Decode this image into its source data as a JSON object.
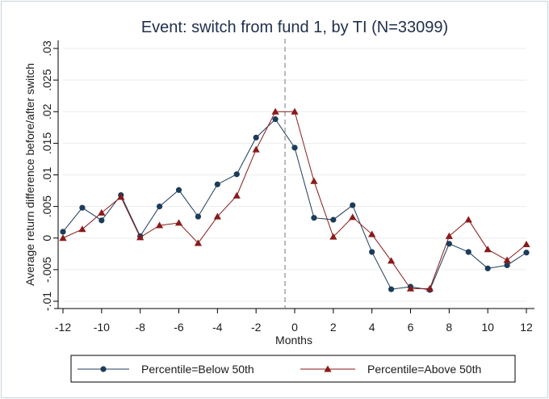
{
  "chart_data": {
    "type": "line",
    "title": "Event: switch from fund 1, by TI (N=33099)",
    "xlabel": "Months",
    "ylabel": "Average return difference before/after switch",
    "xlim": [
      -12,
      12
    ],
    "ylim": [
      -0.01,
      0.03
    ],
    "xticks": [
      "-12",
      "-10",
      "-8",
      "-6",
      "-4",
      "-2",
      "0",
      "2",
      "4",
      "6",
      "8",
      "10",
      "12"
    ],
    "yticks": [
      "-.01",
      "-.005",
      "0",
      ".005",
      ".01",
      ".015",
      ".02",
      ".025",
      ".03"
    ],
    "grid": true,
    "event_line_x": -0.5,
    "legend_position": "bottom",
    "x": [
      -12,
      -11,
      -10,
      -9,
      -8,
      -7,
      -6,
      -5,
      -4,
      -3,
      -2,
      -1,
      0,
      1,
      2,
      3,
      4,
      5,
      6,
      7,
      8,
      9,
      10,
      11,
      12
    ],
    "series": [
      {
        "name": "Percentile=Below 50th",
        "color": "#1c3c5a",
        "marker": "circle",
        "values": [
          0.001,
          0.0048,
          0.0028,
          0.0068,
          0.0003,
          0.005,
          0.0076,
          0.0034,
          0.0085,
          0.0101,
          0.0159,
          0.0188,
          0.0143,
          0.0032,
          0.0029,
          0.0052,
          -0.0022,
          -0.0081,
          -0.0077,
          -0.0082,
          -0.0009,
          -0.0022,
          -0.0048,
          -0.0043,
          -0.0023
        ]
      },
      {
        "name": "Percentile=Above 50th",
        "color": "#8a1a1a",
        "marker": "triangle",
        "values": [
          0.0,
          0.0014,
          0.004,
          0.0065,
          0.0001,
          0.002,
          0.0024,
          -0.0008,
          0.0034,
          0.0067,
          0.014,
          0.02,
          0.02,
          0.009,
          0.0002,
          0.0033,
          0.0006,
          -0.0036,
          -0.008,
          -0.008,
          0.0003,
          0.0029,
          -0.0018,
          -0.0035,
          -0.001
        ]
      }
    ]
  }
}
